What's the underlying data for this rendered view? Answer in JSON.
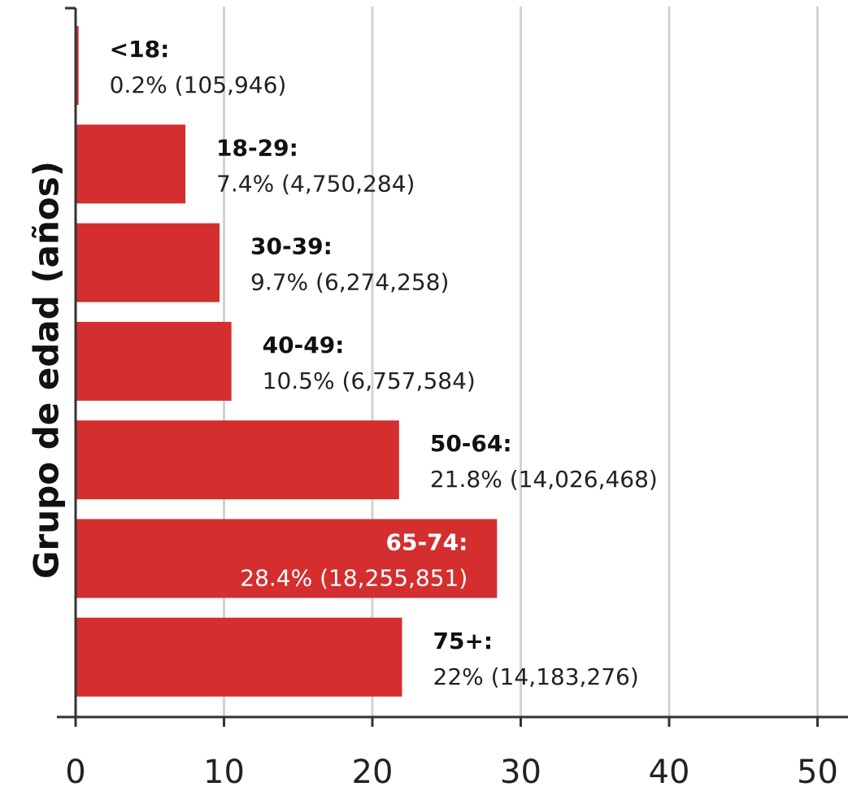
{
  "chart_data": {
    "type": "bar",
    "orientation": "horizontal",
    "title": "",
    "xlabel": "",
    "ylabel": "Grupo de edad (años)",
    "xlim": [
      0,
      50
    ],
    "xticks": [
      "0",
      "10",
      "20",
      "30",
      "40",
      "50"
    ],
    "grid": true,
    "bar_color": "#d42e2e",
    "categories": [
      "<18",
      "18-29",
      "30-39",
      "40-49",
      "50-64",
      "65-74",
      "75+"
    ],
    "values": [
      0.2,
      7.4,
      9.7,
      10.5,
      21.8,
      28.4,
      22
    ],
    "bars": [
      {
        "category_label": "<18:",
        "value_label": "0.2% (105,946)",
        "inside": false
      },
      {
        "category_label": "18-29:",
        "value_label": "7.4% (4,750,284)",
        "inside": false
      },
      {
        "category_label": "30-39:",
        "value_label": "9.7% (6,274,258)",
        "inside": false
      },
      {
        "category_label": "40-49:",
        "value_label": "10.5% (6,757,584)",
        "inside": false
      },
      {
        "category_label": "50-64:",
        "value_label": "21.8% (14,026,468)",
        "inside": false
      },
      {
        "category_label": "65-74:",
        "value_label": "28.4% (18,255,851)",
        "inside": true
      },
      {
        "category_label": "75+:",
        "value_label": "22% (14,183,276)",
        "inside": false
      }
    ]
  }
}
